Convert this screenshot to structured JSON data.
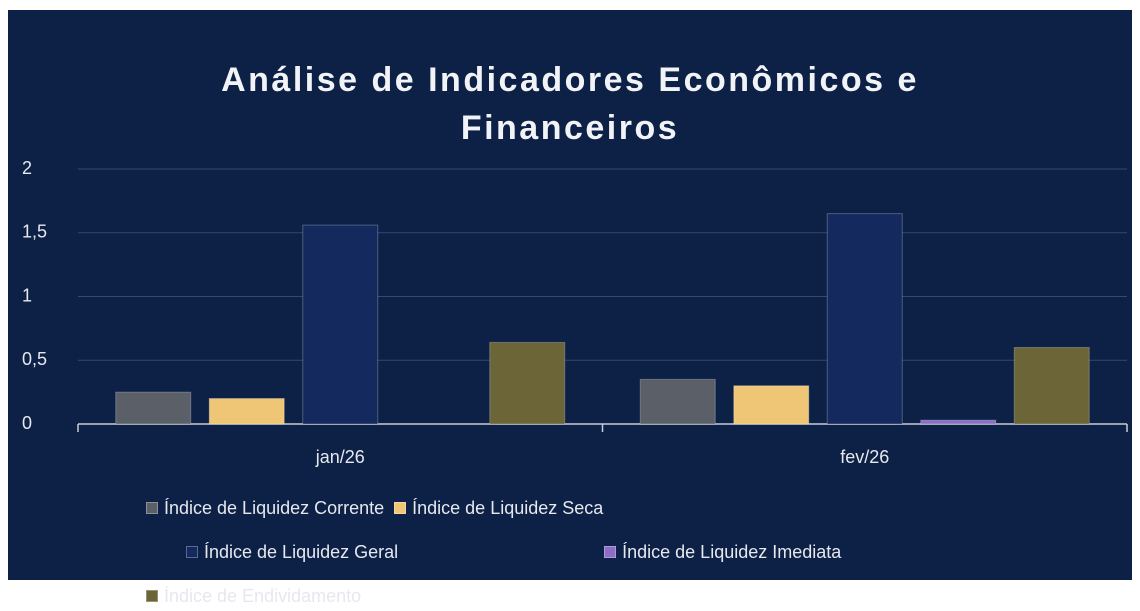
{
  "chart_data": {
    "type": "bar",
    "title": "Análise de Indicadores Econômicos e Financeiros",
    "categories": [
      "jan/26",
      "fev/26"
    ],
    "series": [
      {
        "name": "Índice de Liquidez Corrente",
        "color": "#5b6068",
        "values": [
          0.25,
          0.35
        ]
      },
      {
        "name": "Índice de Liquidez Seca",
        "color": "#efc675",
        "values": [
          0.2,
          0.3
        ]
      },
      {
        "name": "Índice de Liquidez Geral",
        "color": "#142a5e",
        "values": [
          1.56,
          1.65
        ]
      },
      {
        "name": "Índice de Liquidez Imediata",
        "color": "#8c6fc4",
        "values": [
          0,
          0.03
        ]
      },
      {
        "name": "Índice de Endividamento",
        "color": "#6b6538",
        "values": [
          0.64,
          0.6
        ]
      }
    ],
    "ylim": [
      0,
      2
    ],
    "yticks": [
      0,
      {
        "value": 0.5,
        "label": "0,5"
      },
      1,
      {
        "value": 1.5,
        "label": "1,5"
      },
      2
    ],
    "grid": true,
    "legend": "bottom"
  }
}
